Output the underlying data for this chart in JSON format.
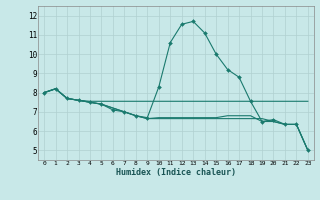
{
  "xlabel": "Humidex (Indice chaleur)",
  "background_color": "#c8e8e8",
  "line_color": "#1a7a6e",
  "grid_color": "#b0d0d0",
  "xlim": [
    -0.5,
    23.5
  ],
  "ylim": [
    4.5,
    12.5
  ],
  "xticks": [
    0,
    1,
    2,
    3,
    4,
    5,
    6,
    7,
    8,
    9,
    10,
    11,
    12,
    13,
    14,
    15,
    16,
    17,
    18,
    19,
    20,
    21,
    22,
    23
  ],
  "yticks": [
    5,
    6,
    7,
    8,
    9,
    10,
    11,
    12
  ],
  "series": [
    {
      "y": [
        8.0,
        8.2,
        7.7,
        7.6,
        7.5,
        7.4,
        7.1,
        7.0,
        6.8,
        6.7,
        8.3,
        10.6,
        11.55,
        11.7,
        11.1,
        10.0,
        9.2,
        8.8,
        7.55,
        6.5,
        6.6,
        6.35,
        6.35,
        5.0
      ],
      "marker": true
    },
    {
      "y": [
        8.0,
        8.2,
        7.7,
        7.6,
        7.55,
        7.55,
        7.55,
        7.55,
        7.55,
        7.55,
        7.55,
        7.55,
        7.55,
        7.55,
        7.55,
        7.55,
        7.55,
        7.55,
        7.55,
        7.55,
        7.55,
        7.55,
        7.55,
        7.55
      ],
      "marker": false
    },
    {
      "y": [
        8.0,
        8.2,
        7.7,
        7.6,
        7.5,
        7.4,
        7.2,
        7.0,
        6.8,
        6.65,
        6.65,
        6.65,
        6.65,
        6.65,
        6.65,
        6.65,
        6.65,
        6.65,
        6.65,
        6.65,
        6.5,
        6.35,
        6.35,
        5.0
      ],
      "marker": false
    },
    {
      "y": [
        8.0,
        8.2,
        7.7,
        7.6,
        7.5,
        7.4,
        7.2,
        7.0,
        6.8,
        6.65,
        6.7,
        6.7,
        6.7,
        6.7,
        6.7,
        6.7,
        6.8,
        6.8,
        6.8,
        6.5,
        6.5,
        6.35,
        6.35,
        5.0
      ],
      "marker": false
    }
  ],
  "figsize": [
    3.2,
    2.0
  ],
  "dpi": 100
}
